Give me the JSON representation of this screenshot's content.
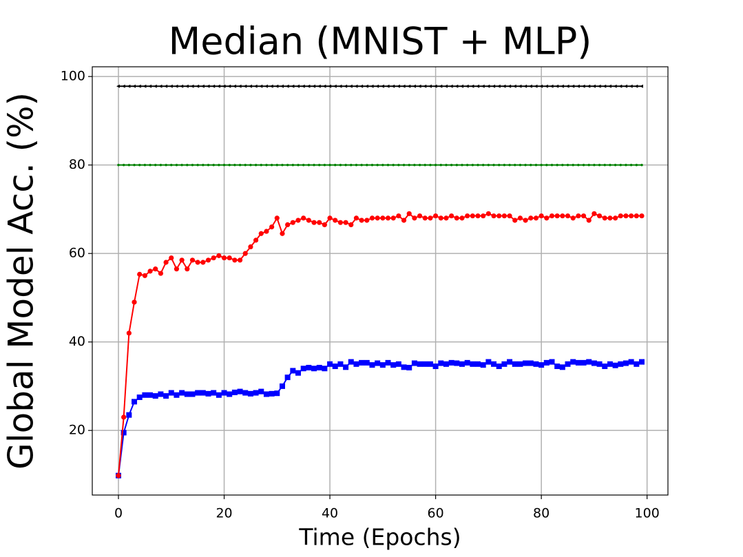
{
  "chart_data": {
    "type": "line",
    "title": "Median (MNIST + MLP)",
    "xlabel": "Time (Epochs)",
    "ylabel": "Global Model Acc. (%)",
    "x": [
      0,
      1,
      2,
      3,
      4,
      5,
      6,
      7,
      8,
      9,
      10,
      11,
      12,
      13,
      14,
      15,
      16,
      17,
      18,
      19,
      20,
      21,
      22,
      23,
      24,
      25,
      26,
      27,
      28,
      29,
      30,
      31,
      32,
      33,
      34,
      35,
      36,
      37,
      38,
      39,
      40,
      41,
      42,
      43,
      44,
      45,
      46,
      47,
      48,
      49,
      50,
      51,
      52,
      53,
      54,
      55,
      56,
      57,
      58,
      59,
      60,
      61,
      62,
      63,
      64,
      65,
      66,
      67,
      68,
      69,
      70,
      71,
      72,
      73,
      74,
      75,
      76,
      77,
      78,
      79,
      80,
      81,
      82,
      83,
      84,
      85,
      86,
      87,
      88,
      89,
      90,
      91,
      92,
      93,
      94,
      95,
      96,
      97,
      98,
      99
    ],
    "series": [
      {
        "color": "#0000ff",
        "marker": "square",
        "values": [
          9.8,
          19.5,
          23.5,
          26.5,
          27.5,
          28,
          28,
          27.8,
          28.2,
          27.8,
          28.5,
          28,
          28.5,
          28.2,
          28.2,
          28.5,
          28.5,
          28.3,
          28.5,
          28,
          28.5,
          28.2,
          28.6,
          28.8,
          28.5,
          28.3,
          28.5,
          28.8,
          28.2,
          28.3,
          28.4,
          30,
          32,
          33.5,
          33,
          34,
          34.2,
          34,
          34.2,
          34,
          35,
          34.5,
          35,
          34.3,
          35.5,
          35,
          35.3,
          35.3,
          34.8,
          35.2,
          34.8,
          35.3,
          34.8,
          35,
          34.3,
          34.2,
          35.2,
          35,
          35,
          35,
          34.5,
          35.2,
          35,
          35.3,
          35.2,
          35,
          35.3,
          35,
          35,
          34.8,
          35.5,
          35,
          34.5,
          35,
          35.5,
          35,
          35,
          35.2,
          35.2,
          35,
          34.8,
          35.3,
          35.5,
          34.5,
          34.3,
          35,
          35.5,
          35.3,
          35.3,
          35.5,
          35.2,
          35,
          34.5,
          35,
          34.7,
          35,
          35.2,
          35.5,
          35,
          35.5
        ]
      },
      {
        "color": "#ff0000",
        "marker": "circle",
        "values": [
          9.8,
          23,
          42,
          49,
          55.3,
          55,
          56,
          56.5,
          55.5,
          58,
          59,
          56.5,
          58.5,
          56.5,
          58.5,
          58,
          58,
          58.5,
          59,
          59.5,
          59,
          59,
          58.5,
          58.5,
          60,
          61.5,
          63,
          64.5,
          65,
          66,
          68,
          64.5,
          66.5,
          67,
          67.5,
          68,
          67.5,
          67,
          67,
          66.5,
          68,
          67.5,
          67,
          67,
          66.5,
          68,
          67.5,
          67.5,
          68,
          68,
          68,
          68,
          68,
          68.5,
          67.5,
          69,
          68,
          68.5,
          68,
          68,
          68.5,
          68,
          68,
          68.5,
          68,
          68,
          68.5,
          68.5,
          68.5,
          68.5,
          69,
          68.5,
          68.5,
          68.5,
          68.5,
          67.5,
          68,
          67.5,
          68,
          68,
          68.5,
          68,
          68.5,
          68.5,
          68.5,
          68.5,
          68,
          68.5,
          68.5,
          67.5,
          69,
          68.5,
          68,
          68,
          68,
          68.5,
          68.5,
          68.5,
          68.5,
          68.5
        ]
      },
      {
        "color": "#008000",
        "marker": "dot",
        "values": [
          80,
          80,
          80,
          80,
          80,
          80,
          80,
          80,
          80,
          80,
          80,
          80,
          80,
          80,
          80,
          80,
          80,
          80,
          80,
          80,
          80,
          80,
          80,
          80,
          80,
          80,
          80,
          80,
          80,
          80,
          80,
          80,
          80,
          80,
          80,
          80,
          80,
          80,
          80,
          80,
          80,
          80,
          80,
          80,
          80,
          80,
          80,
          80,
          80,
          80,
          80,
          80,
          80,
          80,
          80,
          80,
          80,
          80,
          80,
          80,
          80,
          80,
          80,
          80,
          80,
          80,
          80,
          80,
          80,
          80,
          80,
          80,
          80,
          80,
          80,
          80,
          80,
          80,
          80,
          80,
          80,
          80,
          80,
          80,
          80,
          80,
          80,
          80,
          80,
          80,
          80,
          80,
          80,
          80,
          80,
          80,
          80,
          80,
          80,
          80
        ]
      },
      {
        "color": "#000000",
        "marker": "triangle-left",
        "values": [
          97.8,
          97.8,
          97.8,
          97.8,
          97.8,
          97.8,
          97.8,
          97.8,
          97.8,
          97.8,
          97.8,
          97.8,
          97.8,
          97.8,
          97.8,
          97.8,
          97.8,
          97.8,
          97.8,
          97.8,
          97.8,
          97.8,
          97.8,
          97.8,
          97.8,
          97.8,
          97.8,
          97.8,
          97.8,
          97.8,
          97.8,
          97.8,
          97.8,
          97.8,
          97.8,
          97.8,
          97.8,
          97.8,
          97.8,
          97.8,
          97.8,
          97.8,
          97.8,
          97.8,
          97.8,
          97.8,
          97.8,
          97.8,
          97.8,
          97.8,
          97.8,
          97.8,
          97.8,
          97.8,
          97.8,
          97.8,
          97.8,
          97.8,
          97.8,
          97.8,
          97.8,
          97.8,
          97.8,
          97.8,
          97.8,
          97.8,
          97.8,
          97.8,
          97.8,
          97.8,
          97.8,
          97.8,
          97.8,
          97.8,
          97.8,
          97.8,
          97.8,
          97.8,
          97.8,
          97.8,
          97.8,
          97.8,
          97.8,
          97.8,
          97.8,
          97.8,
          97.8,
          97.8,
          97.8,
          97.8,
          97.8,
          97.8,
          97.8,
          97.8,
          97.8,
          97.8,
          97.8,
          97.8,
          97.8,
          97.8
        ]
      }
    ],
    "xlim": [
      -4.95,
      103.95
    ],
    "ylim": [
      5.4,
      102.2
    ],
    "xticks": [
      0,
      20,
      40,
      60,
      80,
      100
    ],
    "yticks": [
      20,
      40,
      60,
      80,
      100
    ],
    "grid": true
  }
}
